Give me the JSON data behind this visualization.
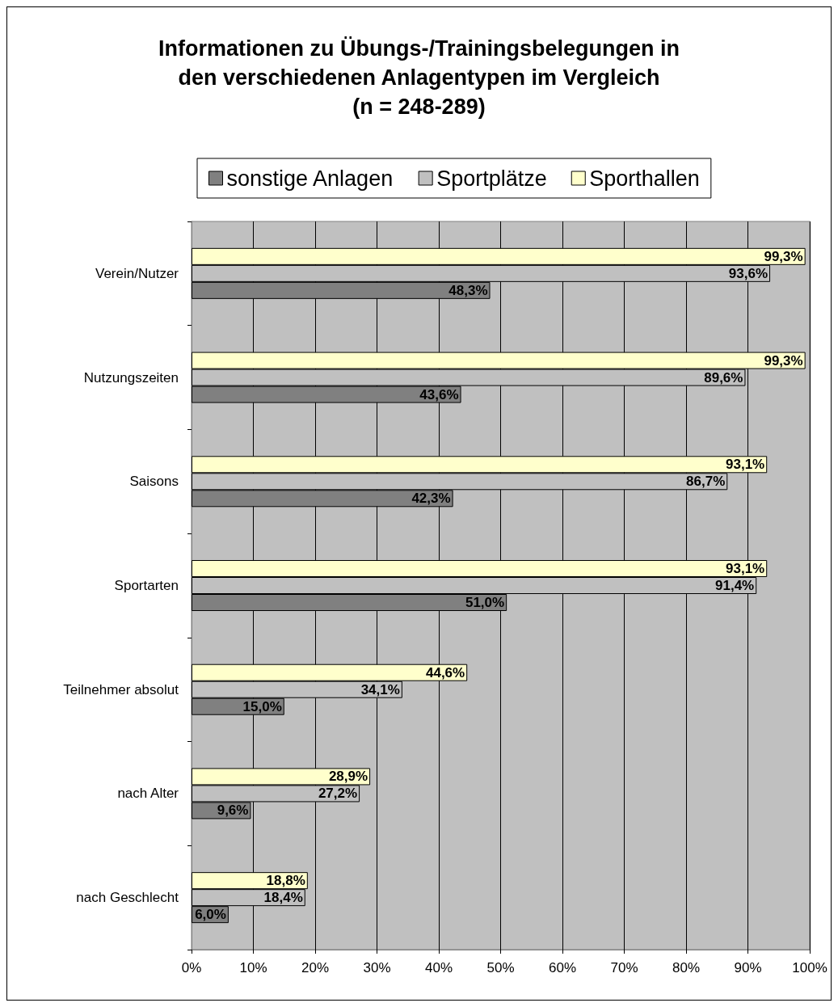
{
  "chart_data": {
    "type": "bar",
    "orientation": "horizontal",
    "title": "Informationen zu Übungs-/Trainingsbelegungen in\nden verschiedenen Anlagentypen im Vergleich\n(n = 248-289)",
    "categories": [
      "Verein/Nutzer",
      "Nutzungszeiten",
      "Saisons",
      "Sportarten",
      "Teilnehmer absolut",
      "nach Alter",
      "nach Geschlecht"
    ],
    "series": [
      {
        "name": "sonstige Anlagen",
        "color": "#808080",
        "values": [
          48.3,
          43.6,
          42.3,
          51.0,
          15.0,
          9.6,
          6.0
        ],
        "value_labels": [
          "48,3%",
          "43,6%",
          "42,3%",
          "51,0%",
          "15,0%",
          "9,6%",
          "6,0%"
        ]
      },
      {
        "name": "Sportplätze",
        "color": "#c0c0c0",
        "values": [
          93.6,
          89.6,
          86.7,
          91.4,
          34.1,
          27.2,
          18.4
        ],
        "value_labels": [
          "93,6%",
          "89,6%",
          "86,7%",
          "91,4%",
          "34,1%",
          "27,2%",
          "18,4%"
        ]
      },
      {
        "name": "Sporthallen",
        "color": "#ffffcc",
        "values": [
          99.3,
          99.3,
          93.1,
          93.1,
          44.6,
          28.9,
          18.8
        ],
        "value_labels": [
          "99,3%",
          "99,3%",
          "93,1%",
          "93,1%",
          "44,6%",
          "28,9%",
          "18,8%"
        ]
      }
    ],
    "xlim": [
      0,
      100
    ],
    "xticks": [
      {
        "value": 0,
        "label": "0%"
      },
      {
        "value": 10,
        "label": "10%"
      },
      {
        "value": 20,
        "label": "20%"
      },
      {
        "value": 30,
        "label": "30%"
      },
      {
        "value": 40,
        "label": "40%"
      },
      {
        "value": 50,
        "label": "50%"
      },
      {
        "value": 60,
        "label": "60%"
      },
      {
        "value": 70,
        "label": "70%"
      },
      {
        "value": 80,
        "label": "80%"
      },
      {
        "value": 90,
        "label": "90%"
      },
      {
        "value": 100,
        "label": "100%"
      }
    ],
    "grid": "x",
    "legend": "top"
  }
}
